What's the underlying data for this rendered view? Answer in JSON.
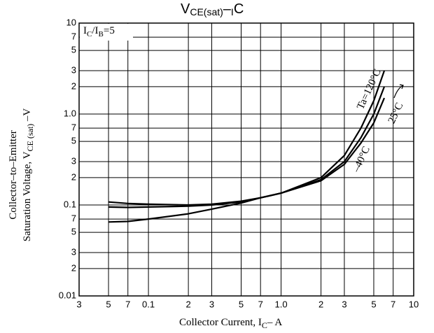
{
  "chart_data": {
    "type": "line",
    "title": [
      "V",
      "CE(sat)",
      "–",
      "I",
      "C"
    ],
    "xlabel": [
      "Collector Current, I",
      "C",
      "–  A"
    ],
    "ylabel": [
      [
        "Collector–to–Emitter"
      ],
      [
        "Saturation  Voltage, V",
        "CE (sat)",
        " –V"
      ]
    ],
    "annotation": [
      "I",
      "C",
      "/I",
      "B",
      "=5"
    ],
    "log_x": true,
    "log_y": true,
    "grid": true,
    "xlim": [
      0.03,
      10
    ],
    "ylim": [
      0.01,
      10
    ],
    "xticks": [
      {
        "value": 0.03,
        "label": "3"
      },
      {
        "value": 0.05,
        "label": "5"
      },
      {
        "value": 0.07,
        "label": "7"
      },
      0.1,
      {
        "value": 0.2,
        "label": "2"
      },
      {
        "value": 0.3,
        "label": "3"
      },
      {
        "value": 0.5,
        "label": "5"
      },
      {
        "value": 0.7,
        "label": "7"
      },
      {
        "value": 1,
        "label": "1.0"
      },
      2,
      3,
      5,
      7,
      10
    ],
    "yticks": [
      0.01,
      {
        "value": 0.02,
        "label": "2"
      },
      {
        "value": 0.03,
        "label": "3"
      },
      {
        "value": 0.05,
        "label": "5"
      },
      {
        "value": 0.07,
        "label": "7"
      },
      0.1,
      {
        "value": 0.2,
        "label": "2"
      },
      {
        "value": 0.3,
        "label": "3"
      },
      {
        "value": 0.5,
        "label": "5"
      },
      {
        "value": 0.7,
        "label": "7"
      },
      {
        "value": 1,
        "label": "1.0"
      },
      2,
      3,
      5,
      7,
      10
    ],
    "x": [
      0.05,
      0.07,
      0.1,
      0.2,
      0.3,
      0.5,
      0.7,
      1,
      2,
      3,
      4,
      5,
      6
    ],
    "series": [
      {
        "name": "Ta=120°C",
        "color": "#000000",
        "values": [
          0.065,
          0.066,
          0.07,
          0.08,
          0.09,
          0.105,
          0.12,
          0.135,
          0.2,
          0.35,
          0.7,
          1.4,
          3.0
        ]
      },
      {
        "name": "25°C",
        "color": "#000000",
        "values": [
          0.095,
          0.094,
          0.095,
          0.097,
          0.1,
          0.108,
          0.12,
          0.135,
          0.19,
          0.3,
          0.55,
          1.0,
          2.0
        ]
      },
      {
        "name": "–40°C",
        "color": "#000000",
        "values": [
          0.108,
          0.104,
          0.102,
          0.1,
          0.102,
          0.11,
          0.12,
          0.135,
          0.185,
          0.28,
          0.48,
          0.8,
          1.5
        ]
      }
    ]
  }
}
